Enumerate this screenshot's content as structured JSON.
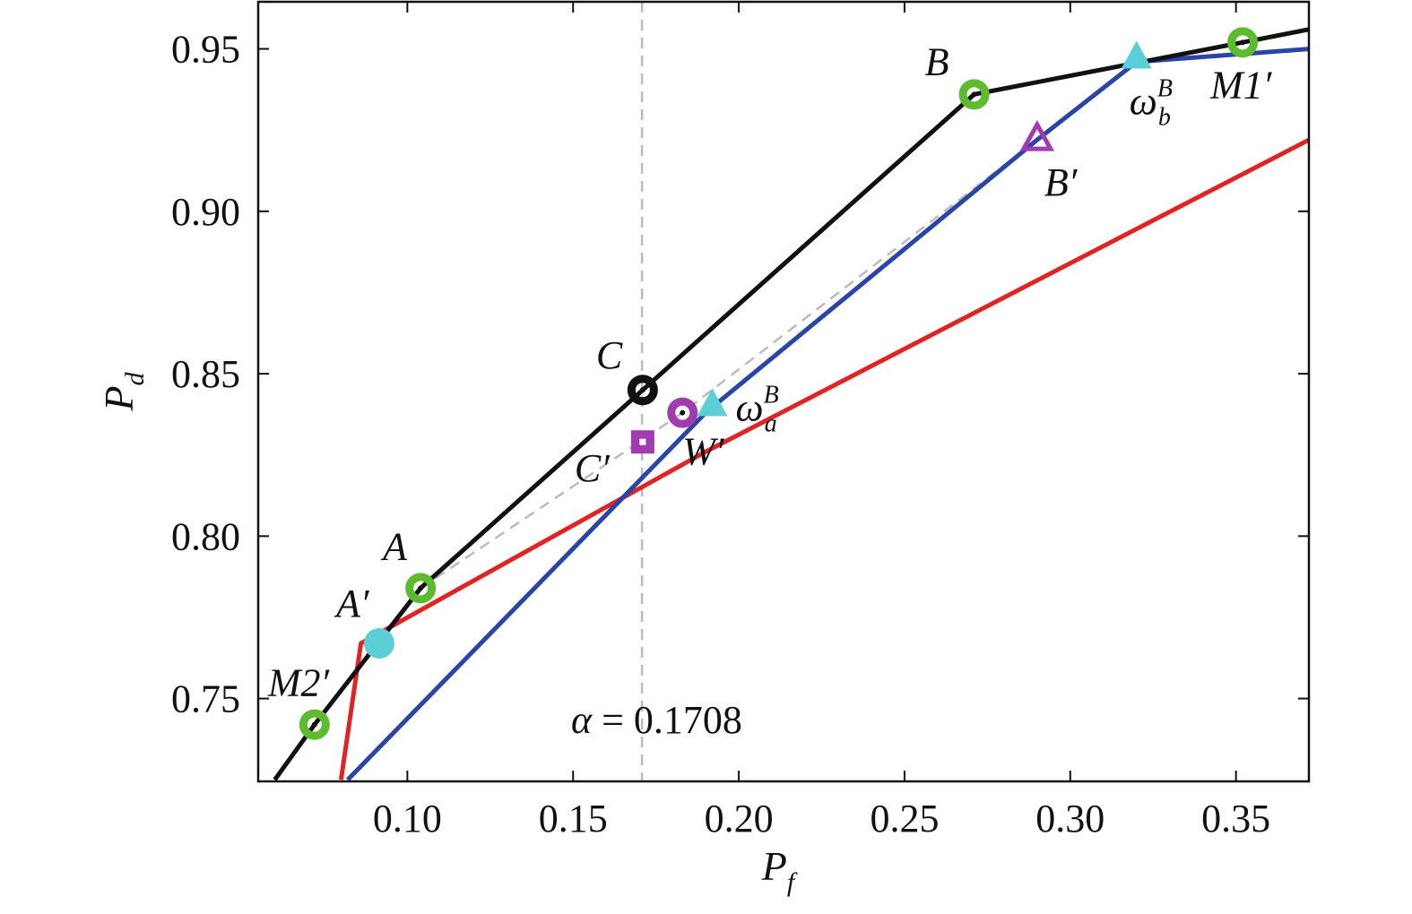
{
  "chart_data": {
    "type": "line",
    "title": "",
    "xlabel": "P",
    "xlabel_sub": "f",
    "ylabel": "P",
    "ylabel_sub": "d",
    "xlim": [
      0.055,
      0.372
    ],
    "ylim": [
      0.7245,
      0.9645
    ],
    "xticks": [
      0.1,
      0.15,
      0.2,
      0.25,
      0.3,
      0.35
    ],
    "xtick_labels": [
      "0.10",
      "0.15",
      "0.20",
      "0.25",
      "0.30",
      "0.35"
    ],
    "yticks": [
      0.75,
      0.8,
      0.85,
      0.9,
      0.95
    ],
    "ytick_labels": [
      "0.75",
      "0.80",
      "0.85",
      "0.90",
      "0.95"
    ],
    "grid": false,
    "colors": {
      "black": "#111111",
      "blue": "#2b44a8",
      "red": "#e02424",
      "green": "#5dbb2e",
      "cyan": "#5ccfd6",
      "purple": "#a03cb0",
      "gray": "#bbbbbb"
    },
    "series": [
      {
        "color_key": "black",
        "dash": false,
        "points": [
          [
            0.06,
            0.725
          ],
          [
            0.072,
            0.742
          ],
          [
            0.104,
            0.784
          ],
          [
            0.171,
            0.845
          ],
          [
            0.271,
            0.936
          ],
          [
            0.352,
            0.952
          ],
          [
            0.372,
            0.956
          ]
        ]
      },
      {
        "color_key": "blue",
        "dash": false,
        "points": [
          [
            0.082,
            0.725
          ],
          [
            0.19,
            0.838
          ],
          [
            0.29,
            0.922
          ],
          [
            0.32,
            0.946
          ],
          [
            0.372,
            0.95
          ]
        ]
      },
      {
        "color_key": "red",
        "dash": false,
        "points": [
          [
            0.08,
            0.725
          ],
          [
            0.086,
            0.767
          ],
          [
            0.19,
            0.826
          ],
          [
            0.372,
            0.922
          ]
        ]
      },
      {
        "color_key": "gray",
        "dash": true,
        "points": [
          [
            0.104,
            0.784
          ],
          [
            0.17,
            0.829
          ],
          [
            0.183,
            0.838
          ],
          [
            0.29,
            0.922
          ]
        ]
      }
    ],
    "vline": {
      "x": 0.1708,
      "label_symbol": "α",
      "label_value": " = 0.1708"
    },
    "markers": [
      {
        "shape": "ring",
        "color_key": "green",
        "x": 0.072,
        "y": 0.742,
        "label": "M2′",
        "label_dx": -52,
        "label_dy": -32
      },
      {
        "shape": "ring",
        "color_key": "green",
        "x": 0.104,
        "y": 0.784,
        "label": "A",
        "label_dx": -42,
        "label_dy": -32
      },
      {
        "shape": "dot",
        "color_key": "cyan",
        "x": 0.0915,
        "y": 0.767,
        "label": "A′",
        "label_dx": -48,
        "label_dy": -30
      },
      {
        "shape": "ring",
        "color_key": "black",
        "x": 0.171,
        "y": 0.845,
        "label": "C",
        "label_dx": -52,
        "label_dy": -24
      },
      {
        "shape": "square",
        "color_key": "purple",
        "x": 0.171,
        "y": 0.829,
        "label": "C′",
        "label_dx": -76,
        "label_dy": 44
      },
      {
        "shape": "ring",
        "color_key": "purple",
        "x": 0.183,
        "y": 0.838,
        "label": "W′",
        "label_dx": 0,
        "label_dy": 58
      },
      {
        "shape": "triangle",
        "color_key": "cyan",
        "x": 0.192,
        "y": 0.84,
        "label": "ω",
        "sup": "B",
        "sub": "a",
        "label_dx": 26,
        "label_dy": 16
      },
      {
        "shape": "ring",
        "color_key": "green",
        "x": 0.271,
        "y": 0.936,
        "label": "B",
        "label_dx": -55,
        "label_dy": -22
      },
      {
        "shape": "triangle-open",
        "color_key": "purple",
        "x": 0.29,
        "y": 0.922,
        "label": "B′",
        "label_dx": 8,
        "label_dy": 62
      },
      {
        "shape": "triangle",
        "color_key": "cyan",
        "x": 0.32,
        "y": 0.947,
        "label": "ω",
        "sup": "B",
        "sub": "b",
        "label_dx": -8,
        "label_dy": 62
      },
      {
        "shape": "ring",
        "color_key": "green",
        "x": 0.352,
        "y": 0.952,
        "label": "M1′",
        "label_dx": -36,
        "label_dy": 62
      }
    ]
  }
}
